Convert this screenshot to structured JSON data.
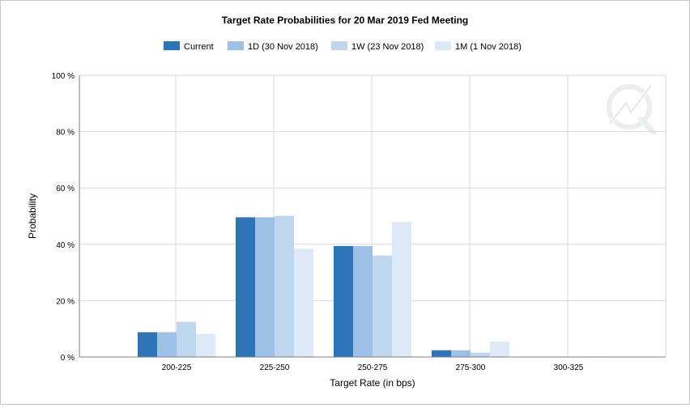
{
  "chart_data": {
    "type": "bar",
    "title": "Target Rate Probabilities for 20 Mar 2019 Fed Meeting",
    "xlabel": "Target Rate (in bps)",
    "ylabel": "Probability",
    "ylim": [
      0,
      100
    ],
    "yticks": [
      "0 %",
      "20 %",
      "40 %",
      "60 %",
      "80 %",
      "100 %"
    ],
    "ytick_values": [
      0,
      20,
      40,
      60,
      80,
      100
    ],
    "categories": [
      "200-225",
      "225-250",
      "250-275",
      "275-300",
      "300-325"
    ],
    "series": [
      {
        "name": "Current",
        "color": "#2e74b8",
        "values": [
          8.8,
          49.6,
          39.4,
          2.4,
          0.0
        ]
      },
      {
        "name": "1D (30 Nov 2018)",
        "color": "#9dc1e6",
        "values": [
          8.8,
          49.6,
          39.4,
          2.4,
          0.0
        ]
      },
      {
        "name": "1W (23 Nov 2018)",
        "color": "#bed6ee",
        "values": [
          12.5,
          50.1,
          36.0,
          1.5,
          0.0
        ]
      },
      {
        "name": "1M (1 Nov 2018)",
        "color": "#dce9f6",
        "values": [
          8.2,
          38.4,
          47.9,
          5.5,
          0.2
        ]
      }
    ],
    "grid": true,
    "legend_position": "top-center"
  }
}
